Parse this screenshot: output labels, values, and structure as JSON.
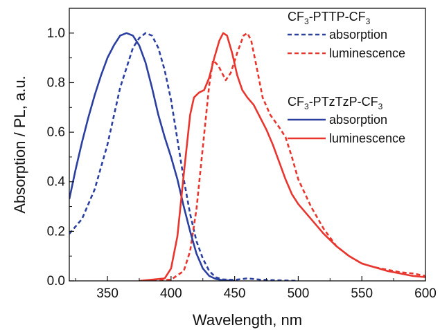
{
  "chart_data": {
    "type": "line",
    "xlabel": "Wavelength, nm",
    "ylabel": "Absorption / PL, a.u.",
    "xlim": [
      320,
      600
    ],
    "ylim": [
      0.0,
      1.1
    ],
    "x_ticks": [
      "350",
      "400",
      "450",
      "500",
      "550",
      "600"
    ],
    "y_ticks": [
      "0.0",
      "0.2",
      "0.4",
      "0.6",
      "0.8",
      "1.0"
    ],
    "grid": false,
    "legend_position": "top-right",
    "legend_groups": [
      {
        "heading_main": "CF",
        "heading_sub1": "3",
        "heading_mid": "-PTTP-CF",
        "heading_sub2": "3",
        "entries": [
          {
            "label": "absorption",
            "color": "#2b3fa0",
            "dash": "dashed",
            "series": 0
          },
          {
            "label": "luminescence",
            "color": "#e8352e",
            "dash": "dashed",
            "series": 1
          }
        ]
      },
      {
        "heading_main": "CF",
        "heading_sub1": "3",
        "heading_mid": "-PTzTzP-CF",
        "heading_sub2": "3",
        "entries": [
          {
            "label": "absorption",
            "color": "#2b3fa0",
            "dash": "solid",
            "series": 2
          },
          {
            "label": "luminescence",
            "color": "#e8352e",
            "dash": "solid",
            "series": 3
          }
        ]
      }
    ],
    "series": [
      {
        "color": "#2b3fa0",
        "dash": "dashed",
        "points": [
          [
            320,
            0.19
          ],
          [
            330,
            0.25
          ],
          [
            340,
            0.37
          ],
          [
            350,
            0.55
          ],
          [
            360,
            0.78
          ],
          [
            370,
            0.94
          ],
          [
            375,
            0.98
          ],
          [
            380,
            1.0
          ],
          [
            385,
            0.99
          ],
          [
            390,
            0.94
          ],
          [
            395,
            0.85
          ],
          [
            400,
            0.73
          ],
          [
            405,
            0.57
          ],
          [
            410,
            0.41
          ],
          [
            415,
            0.27
          ],
          [
            420,
            0.16
          ],
          [
            425,
            0.09
          ],
          [
            430,
            0.04
          ],
          [
            435,
            0.015
          ],
          [
            440,
            0.006
          ],
          [
            450,
            0.004
          ],
          [
            460,
            0.01
          ],
          [
            470,
            0.005
          ],
          [
            480,
            0.003
          ],
          [
            500,
            0.0
          ]
        ]
      },
      {
        "color": "#e8352e",
        "dash": "dashed",
        "points": [
          [
            380,
            0.0
          ],
          [
            400,
            0.005
          ],
          [
            410,
            0.04
          ],
          [
            415,
            0.12
          ],
          [
            420,
            0.29
          ],
          [
            425,
            0.54
          ],
          [
            430,
            0.79
          ],
          [
            433,
            0.89
          ],
          [
            437,
            0.87
          ],
          [
            440,
            0.84
          ],
          [
            443,
            0.81
          ],
          [
            447,
            0.84
          ],
          [
            452,
            0.92
          ],
          [
            457,
            0.99
          ],
          [
            460,
            1.0
          ],
          [
            463,
            0.97
          ],
          [
            467,
            0.87
          ],
          [
            472,
            0.74
          ],
          [
            478,
            0.67
          ],
          [
            485,
            0.62
          ],
          [
            490,
            0.58
          ],
          [
            495,
            0.5
          ],
          [
            500,
            0.41
          ],
          [
            510,
            0.3
          ],
          [
            520,
            0.21
          ],
          [
            530,
            0.14
          ],
          [
            540,
            0.1
          ],
          [
            550,
            0.07
          ],
          [
            560,
            0.055
          ],
          [
            570,
            0.045
          ],
          [
            580,
            0.035
          ],
          [
            590,
            0.03
          ],
          [
            600,
            0.02
          ]
        ]
      },
      {
        "color": "#2b3fa0",
        "dash": "solid",
        "points": [
          [
            320,
            0.33
          ],
          [
            325,
            0.45
          ],
          [
            330,
            0.56
          ],
          [
            335,
            0.66
          ],
          [
            340,
            0.75
          ],
          [
            345,
            0.83
          ],
          [
            350,
            0.9
          ],
          [
            355,
            0.95
          ],
          [
            360,
            0.99
          ],
          [
            365,
            1.0
          ],
          [
            370,
            0.99
          ],
          [
            375,
            0.95
          ],
          [
            380,
            0.88
          ],
          [
            385,
            0.78
          ],
          [
            390,
            0.67
          ],
          [
            395,
            0.58
          ],
          [
            400,
            0.5
          ],
          [
            405,
            0.41
          ],
          [
            410,
            0.3
          ],
          [
            415,
            0.2
          ],
          [
            420,
            0.11
          ],
          [
            425,
            0.05
          ],
          [
            430,
            0.02
          ],
          [
            435,
            0.008
          ],
          [
            440,
            0.003
          ],
          [
            450,
            0.0
          ]
        ]
      },
      {
        "color": "#e8352e",
        "dash": "solid",
        "points": [
          [
            375,
            0.0
          ],
          [
            395,
            0.01
          ],
          [
            400,
            0.05
          ],
          [
            405,
            0.18
          ],
          [
            410,
            0.43
          ],
          [
            415,
            0.67
          ],
          [
            418,
            0.74
          ],
          [
            422,
            0.76
          ],
          [
            426,
            0.77
          ],
          [
            430,
            0.82
          ],
          [
            434,
            0.9
          ],
          [
            438,
            0.97
          ],
          [
            441,
            1.0
          ],
          [
            444,
            0.99
          ],
          [
            448,
            0.92
          ],
          [
            452,
            0.83
          ],
          [
            456,
            0.77
          ],
          [
            460,
            0.74
          ],
          [
            465,
            0.71
          ],
          [
            470,
            0.66
          ],
          [
            475,
            0.61
          ],
          [
            480,
            0.55
          ],
          [
            485,
            0.48
          ],
          [
            490,
            0.41
          ],
          [
            495,
            0.35
          ],
          [
            500,
            0.31
          ],
          [
            510,
            0.25
          ],
          [
            520,
            0.19
          ],
          [
            530,
            0.14
          ],
          [
            540,
            0.1
          ],
          [
            550,
            0.07
          ],
          [
            560,
            0.055
          ],
          [
            570,
            0.04
          ],
          [
            580,
            0.03
          ],
          [
            590,
            0.02
          ],
          [
            600,
            0.015
          ]
        ]
      }
    ]
  }
}
